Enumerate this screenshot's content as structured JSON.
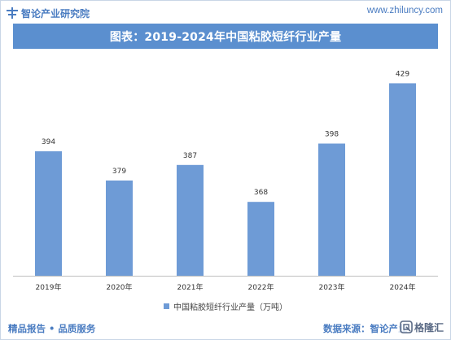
{
  "header": {
    "brand": "智论产业研究院",
    "site_url": "www.zhiluncy.com",
    "title": "图表：2019-2024年中国粘胶短纤行业产量"
  },
  "footer": {
    "left": "精品报告 • 品质服务",
    "right": "数据来源：智论产业",
    "watermark": "格隆汇"
  },
  "colors": {
    "accent": "#5b8fcf",
    "bar": "#6e9bd6",
    "brand_text": "#4a7cc1"
  },
  "icons": {
    "brand": "plus-bars-logo-icon",
    "watermark": "gelonghui-logo-icon"
  },
  "chart_data": {
    "type": "bar",
    "categories": [
      "2019年",
      "2020年",
      "2021年",
      "2022年",
      "2023年",
      "2024年"
    ],
    "series": [
      {
        "name": "中国粘胶短纤行业产量（万吨）",
        "values": [
          394,
          379,
          387,
          368,
          398,
          429
        ]
      }
    ],
    "data_labels": [
      "394",
      "379",
      "387",
      "368",
      "398",
      "429"
    ],
    "ylim": [
      330,
      430
    ],
    "grid": false,
    "legend": "bottom-center"
  }
}
